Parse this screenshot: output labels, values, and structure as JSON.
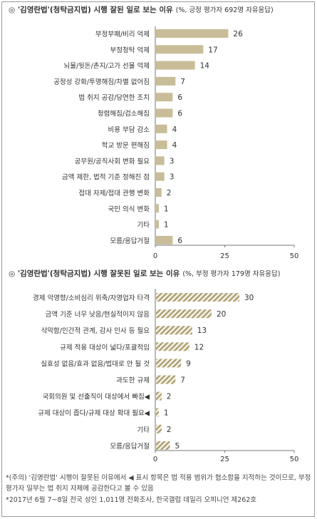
{
  "chart_data": [
    {
      "type": "bar",
      "title_prefix": "◎",
      "title": "'김영란법'(청탁금지법) 시행 잘된 일로 보는 이유",
      "subtitle": "(%, 긍정 평가자 692명 자유응답)",
      "categories": [
        "부정부패/비리 억제",
        "부정청탁 억제",
        "뇌물/뒷돈/촌지/고가 선물 억제",
        "공정성 강화/투명해짐/차별 없어짐",
        "법 취지 공감/당연한 조치",
        "청렴해짐/검소해짐",
        "비용 부담 감소",
        "학교 방문 편해짐",
        "공무원/공직사회 변화 필요",
        "금액 제한, 법적 기준 정해진 점",
        "접대 자제/접대 관행 변화",
        "국민 의식 변화",
        "기타",
        "모름/응답거절"
      ],
      "values": [
        26,
        17,
        14,
        7,
        6,
        6,
        4,
        4,
        3,
        3,
        2,
        1,
        1,
        6
      ],
      "xlim": [
        0,
        50
      ],
      "xticks": [
        "0",
        "25",
        "50"
      ],
      "bar_color": "#c8bd98",
      "grid": false
    },
    {
      "type": "bar",
      "title_prefix": "◎",
      "title": "'김영란법'(청탁금지법) 시행 잘못된 일로 보는 이유",
      "subtitle": "(%, 부정 평가자 179명 자유응답)",
      "categories": [
        "경제 악영향/소비심리 위축/자영업자 타격",
        "금액 기준 너무 낮음/현실적이지 않음",
        "삭막함/인간적 관계, 감사 인사 등 필요",
        "규제 적용 대상이 넓다/포괄적임",
        "실효성 없음/효과 없음/법대로 안 될 것",
        "과도한 규제",
        "국회의원 및 선출직이 대상에서 빠짐◀",
        "규제 대상이 좁다/규제 대상 확대 필요◀",
        "기타",
        "모름/응답거절"
      ],
      "values": [
        30,
        20,
        13,
        12,
        9,
        7,
        2,
        1,
        2,
        5
      ],
      "xlim": [
        0,
        50
      ],
      "xticks": [
        "0",
        "25",
        "50"
      ],
      "bar_color": "#b5a77e",
      "bar_pattern": "diagonal-hatch",
      "grid": false
    }
  ],
  "footnote1": "*(주의) '김영란법' 시행이 잘못된 이유에서 ◀ 표시 항목은 법 적용 범위가 협소함을 지적하는 것이므로, 부정 평가자 일부는 법 취지 자체에 공감한다고 볼 수 있음",
  "footnote2": "*2017년 6월 7~8일 전국 성인 1,011명 전화조사, 한국갤럽 데일리 오피니언 제262호"
}
